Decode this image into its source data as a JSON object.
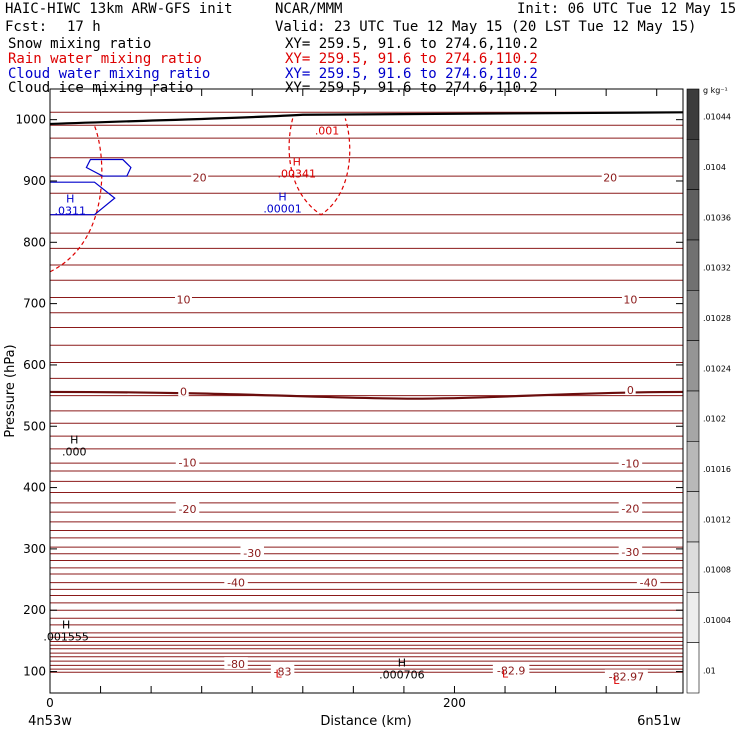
{
  "header": {
    "model": "HAIC-HIWC 13km ARW-GFS init",
    "org": "NCAR/MMM",
    "init": "Init: 06 UTC Tue 12 May 15",
    "fcst_label": "Fcst:",
    "fcst_value": "17 h",
    "valid": "Valid: 23 UTC Tue 12 May 15 (20 LST Tue 12 May 15)"
  },
  "legend": [
    {
      "name": "Snow mixing ratio",
      "xy": "XY= 259.5, 91.6 to 274.6,110.2",
      "color": "#000000"
    },
    {
      "name": "Rain water mixing ratio",
      "xy": "XY= 259.5, 91.6 to 274.6,110.2",
      "color": "#dd0000"
    },
    {
      "name": "Cloud water mixing ratio",
      "xy": "XY= 259.5, 91.6 to 274.6,110.2",
      "color": "#0000cc"
    },
    {
      "name": "Cloud ice mixing ratio",
      "xy": "XY= 259.5, 91.6 to 274.6,110.2",
      "color": "#000000"
    }
  ],
  "chart_data": {
    "type": "line",
    "xlabel": "Distance (km)",
    "ylabel": "Pressure (hPa)",
    "xlim": [
      0,
      313
    ],
    "ylim": [
      1050,
      65
    ],
    "x_ticks": [
      0,
      200
    ],
    "y_ticks": [
      100,
      200,
      300,
      400,
      500,
      600,
      700,
      800,
      900,
      1000
    ],
    "start_point": "4n53w",
    "end_point": "6n51w",
    "temperature_labels": [
      {
        "text": "-80",
        "x": 92,
        "p": 112
      },
      {
        "text": "-83",
        "x": 115,
        "p": 100
      },
      {
        "text": "-82.9",
        "x": 228,
        "p": 102
      },
      {
        "text": "-82.97",
        "x": 285,
        "p": 92
      },
      {
        "text": "-40",
        "x": 92,
        "p": 245
      },
      {
        "text": "-40",
        "x": 296,
        "p": 245
      },
      {
        "text": "-30",
        "x": 100,
        "p": 293
      },
      {
        "text": "-30",
        "x": 287,
        "p": 295
      },
      {
        "text": "-20",
        "x": 68,
        "p": 365
      },
      {
        "text": "-20",
        "x": 287,
        "p": 366
      },
      {
        "text": "-10",
        "x": 68,
        "p": 441
      },
      {
        "text": "-10",
        "x": 287,
        "p": 439
      },
      {
        "text": "0",
        "x": 66,
        "p": 557
      },
      {
        "text": "0",
        "x": 287,
        "p": 559
      },
      {
        "text": "10",
        "x": 66,
        "p": 707
      },
      {
        "text": "10",
        "x": 287,
        "p": 707
      },
      {
        "text": "20",
        "x": 74,
        "p": 906
      },
      {
        "text": "20",
        "x": 277,
        "p": 906
      }
    ],
    "extrema_labels": [
      {
        "mark": "L",
        "value": "",
        "x": 113,
        "p": 90,
        "color": "#dd0000"
      },
      {
        "mark": "L",
        "value": "",
        "x": 225,
        "p": 90,
        "color": "#dd0000"
      },
      {
        "mark": "L",
        "value": "",
        "x": 280,
        "p": 80,
        "color": "#dd0000"
      },
      {
        "mark": "H",
        "value": ".000706",
        "x": 174,
        "p": 108,
        "color": "#000000"
      },
      {
        "mark": "H",
        "value": ".001555",
        "x": 8,
        "p": 170,
        "color": "#000000"
      },
      {
        "mark": "H",
        "value": ".000",
        "x": 12,
        "p": 472,
        "color": "#000000"
      },
      {
        "mark": "H",
        "value": ".0311",
        "x": 10,
        "p": 865,
        "color": "#0000cc"
      },
      {
        "mark": "H",
        "value": ".00001",
        "x": 115,
        "p": 868,
        "color": "#0000cc"
      },
      {
        "mark": "H",
        "value": ".00341",
        "x": 122,
        "p": 925,
        "color": "#dd0000"
      },
      {
        "mark": "",
        "value": ".001",
        "x": 137,
        "p": 995,
        "color": "#dd0000"
      }
    ],
    "colorbar": {
      "unit": "g kg⁻¹",
      "labels": [
        ".01044",
        ".0104",
        ".01036",
        ".01032",
        ".01028",
        ".01024",
        ".0102",
        ".01016",
        ".01012",
        ".01008",
        ".01004",
        ".01"
      ]
    }
  }
}
